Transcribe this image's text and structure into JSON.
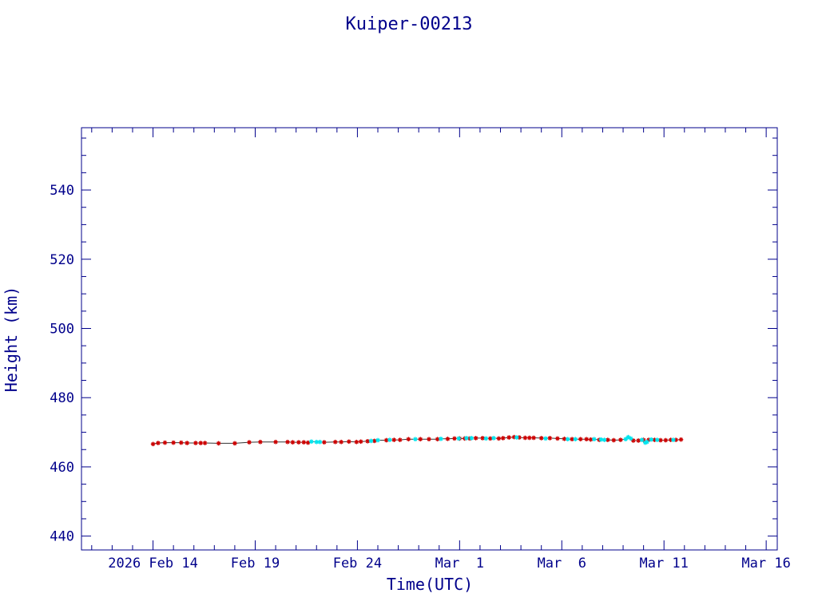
{
  "chart_data": {
    "type": "scatter",
    "title": "Kuiper-00213",
    "xlabel": "Time(UTC)",
    "ylabel": "Height (km)",
    "x_ticks": [
      {
        "value": "2026-02-14",
        "label": "2026 Feb 14"
      },
      {
        "value": "2026-02-19",
        "label": "Feb 19"
      },
      {
        "value": "2026-02-24",
        "label": "Feb 24"
      },
      {
        "value": "2026-03-01",
        "label": "Mar  1"
      },
      {
        "value": "2026-03-06",
        "label": "Mar  6"
      },
      {
        "value": "2026-03-11",
        "label": "Mar 11"
      },
      {
        "value": "2026-03-16",
        "label": "Mar 16"
      }
    ],
    "y_ticks": [
      440,
      460,
      480,
      500,
      520,
      540
    ],
    "xlim": [
      "2026-02-10T12:00",
      "2026-03-16T13:00"
    ],
    "ylim": [
      436,
      558
    ],
    "grid": false,
    "colors": {
      "axis": "#00008b",
      "series_primary": "#cc0000",
      "series_secondary": "#00e5ee",
      "line": "#333333"
    },
    "series": [
      {
        "marker": "star",
        "color": "#cc0000",
        "points": [
          [
            "2026-02-14T00:00",
            466.6
          ],
          [
            "2026-02-14T06:00",
            466.9
          ],
          [
            "2026-02-14T14:00",
            467.0
          ],
          [
            "2026-02-15T00:00",
            467.0
          ],
          [
            "2026-02-15T09:00",
            467.0
          ],
          [
            "2026-02-15T16:00",
            466.9
          ],
          [
            "2026-02-16T02:00",
            466.9
          ],
          [
            "2026-02-16T08:00",
            466.9
          ],
          [
            "2026-02-16T13:00",
            466.9
          ],
          [
            "2026-02-17T05:00",
            466.8
          ],
          [
            "2026-02-18T00:00",
            466.8
          ],
          [
            "2026-02-18T17:00",
            467.1
          ],
          [
            "2026-02-19T06:00",
            467.2
          ],
          [
            "2026-02-20T00:00",
            467.2
          ],
          [
            "2026-02-20T14:00",
            467.2
          ],
          [
            "2026-02-20T20:00",
            467.1
          ],
          [
            "2026-02-21T03:00",
            467.1
          ],
          [
            "2026-02-21T09:00",
            467.1
          ],
          [
            "2026-02-21T14:00",
            467.0
          ],
          [
            "2026-02-22T09:00",
            467.1
          ],
          [
            "2026-02-22T22:00",
            467.2
          ],
          [
            "2026-02-23T05:00",
            467.2
          ],
          [
            "2026-02-23T14:00",
            467.3
          ],
          [
            "2026-02-23T23:00",
            467.2
          ],
          [
            "2026-02-24T04:00",
            467.3
          ],
          [
            "2026-02-24T12:00",
            467.4
          ],
          [
            "2026-02-24T20:00",
            467.5
          ],
          [
            "2026-02-25T10:00",
            467.7
          ],
          [
            "2026-02-25T19:00",
            467.8
          ],
          [
            "2026-02-26T02:00",
            467.8
          ],
          [
            "2026-02-26T12:00",
            468.0
          ],
          [
            "2026-02-27T02:00",
            468.0
          ],
          [
            "2026-02-27T12:00",
            468.0
          ],
          [
            "2026-02-27T22:00",
            468.0
          ],
          [
            "2026-02-28T10:00",
            468.1
          ],
          [
            "2026-02-28T18:00",
            468.2
          ],
          [
            "2026-03-01T00:00",
            468.2
          ],
          [
            "2026-03-01T06:00",
            468.2
          ],
          [
            "2026-03-01T12:00",
            468.2
          ],
          [
            "2026-03-01T19:00",
            468.3
          ],
          [
            "2026-03-02T03:00",
            468.3
          ],
          [
            "2026-03-02T12:00",
            468.2
          ],
          [
            "2026-03-02T22:00",
            468.2
          ],
          [
            "2026-03-03T03:00",
            468.3
          ],
          [
            "2026-03-03T10:00",
            468.5
          ],
          [
            "2026-03-03T16:00",
            468.6
          ],
          [
            "2026-03-03T22:00",
            468.5
          ],
          [
            "2026-03-04T05:00",
            468.4
          ],
          [
            "2026-03-04T10:00",
            468.4
          ],
          [
            "2026-03-04T15:00",
            468.4
          ],
          [
            "2026-03-05T00:00",
            468.3
          ],
          [
            "2026-03-05T10:00",
            468.3
          ],
          [
            "2026-03-05T19:00",
            468.2
          ],
          [
            "2026-03-06T03:00",
            468.1
          ],
          [
            "2026-03-06T12:00",
            468.0
          ],
          [
            "2026-03-06T22:00",
            468.0
          ],
          [
            "2026-03-07T05:00",
            468.0
          ],
          [
            "2026-03-07T10:00",
            467.9
          ],
          [
            "2026-03-07T20:00",
            467.8
          ],
          [
            "2026-03-08T06:00",
            467.8
          ],
          [
            "2026-03-08T13:00",
            467.7
          ],
          [
            "2026-03-08T21:00",
            467.8
          ],
          [
            "2026-03-09T12:00",
            467.6
          ],
          [
            "2026-03-09T18:00",
            467.6
          ],
          [
            "2026-03-10T00:00",
            467.8
          ],
          [
            "2026-03-10T06:00",
            467.8
          ],
          [
            "2026-03-10T13:00",
            467.8
          ],
          [
            "2026-03-10T20:00",
            467.7
          ],
          [
            "2026-03-11T02:00",
            467.7
          ],
          [
            "2026-03-11T08:00",
            467.8
          ],
          [
            "2026-03-11T14:00",
            467.8
          ],
          [
            "2026-03-11T20:00",
            467.9
          ]
        ]
      },
      {
        "marker": "star",
        "color": "#00e5ee",
        "points": [
          [
            "2026-02-21T18:00",
            467.3
          ],
          [
            "2026-02-22T00:00",
            467.2
          ],
          [
            "2026-02-22T04:00",
            467.2
          ],
          [
            "2026-02-24T16:00",
            467.5
          ],
          [
            "2026-02-25T00:00",
            467.7
          ],
          [
            "2026-02-25T14:00",
            467.8
          ],
          [
            "2026-02-26T20:00",
            468.0
          ],
          [
            "2026-02-28T02:00",
            468.1
          ],
          [
            "2026-02-28T23:00",
            468.2
          ],
          [
            "2026-03-01T08:00",
            468.3
          ],
          [
            "2026-03-01T14:00",
            468.3
          ],
          [
            "2026-03-02T07:00",
            468.2
          ],
          [
            "2026-03-02T16:00",
            468.3
          ],
          [
            "2026-03-03T19:00",
            468.5
          ],
          [
            "2026-03-05T05:00",
            468.2
          ],
          [
            "2026-03-06T07:00",
            468.0
          ],
          [
            "2026-03-06T16:00",
            468.0
          ],
          [
            "2026-03-07T14:00",
            468.0
          ],
          [
            "2026-03-07T22:00",
            467.9
          ],
          [
            "2026-03-08T02:00",
            467.8
          ],
          [
            "2026-03-09T03:00",
            468.0
          ],
          [
            "2026-03-09T06:00",
            468.6
          ],
          [
            "2026-03-09T09:00",
            468.2
          ],
          [
            "2026-03-09T22:00",
            467.8
          ],
          [
            "2026-03-10T02:00",
            467.0
          ],
          [
            "2026-03-10T04:00",
            467.2
          ],
          [
            "2026-03-10T09:00",
            467.9
          ],
          [
            "2026-03-10T16:00",
            467.8
          ],
          [
            "2026-03-11T11:00",
            467.8
          ]
        ]
      }
    ]
  }
}
